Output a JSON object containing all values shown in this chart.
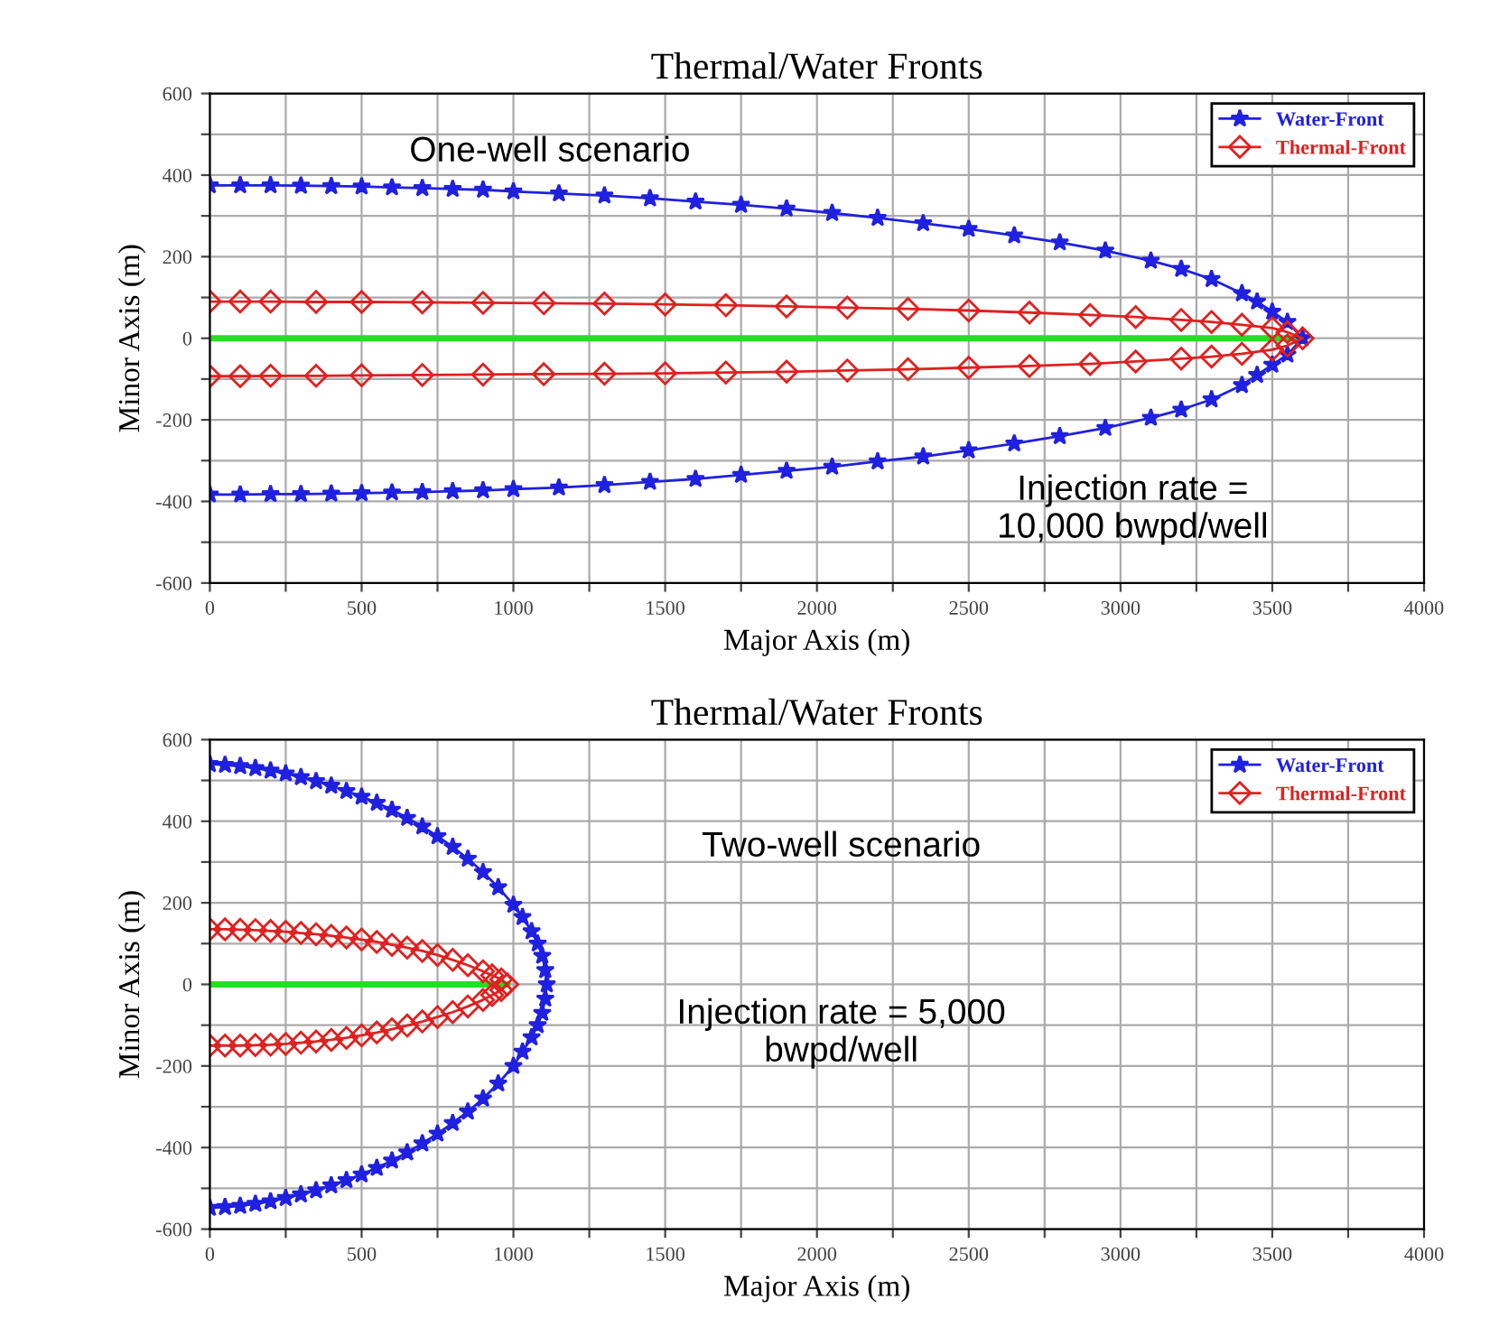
{
  "chart_data": [
    {
      "type": "line",
      "title": "Thermal/Water Fronts",
      "xlabel": "Major Axis (m)",
      "ylabel": "Minor Axis (m)",
      "xlim": [
        0,
        4000
      ],
      "ylim": [
        -600,
        600
      ],
      "xticks": [
        0,
        {
          "value": 250,
          "label": null
        },
        500,
        {
          "value": 750,
          "label": null
        },
        1000,
        {
          "value": 1250,
          "label": null
        },
        1500,
        {
          "value": 1750,
          "label": null
        },
        2000,
        {
          "value": 2250,
          "label": null
        },
        2500,
        {
          "value": 2750,
          "label": null
        },
        3000,
        {
          "value": 3250,
          "label": null
        },
        3500,
        {
          "value": 3750,
          "label": null
        },
        4000
      ],
      "yticks": [
        -600,
        {
          "value": -500,
          "label": null
        },
        -400,
        {
          "value": -300,
          "label": null
        },
        -200,
        {
          "value": -100,
          "label": null
        },
        0,
        {
          "value": 100,
          "label": null
        },
        200,
        {
          "value": 300,
          "label": null
        },
        400,
        {
          "value": 500,
          "label": null
        },
        600
      ],
      "grid": true,
      "legend": "top right",
      "annotations": [
        "One-well scenario",
        "Injection rate =\n10,000 bwpd/well"
      ],
      "series": [
        {
          "name": "Water-Front",
          "color": "#2020e0",
          "marker": "star",
          "x": [
            0,
            100,
            200,
            300,
            400,
            500,
            600,
            700,
            800,
            900,
            1000,
            1150,
            1300,
            1450,
            1600,
            1750,
            1900,
            2050,
            2200,
            2350,
            2500,
            2650,
            2800,
            2950,
            3100,
            3200,
            3300,
            3400,
            3450,
            3500,
            3550,
            3600,
            3550,
            3500,
            3450,
            3400,
            3300,
            3200,
            3100,
            2950,
            2800,
            2650,
            2500,
            2350,
            2200,
            2050,
            1900,
            1750,
            1600,
            1450,
            1300,
            1150,
            1000,
            900,
            800,
            700,
            600,
            500,
            400,
            300,
            200,
            100,
            0
          ],
          "values": [
            375,
            375,
            375,
            374,
            373,
            372,
            370,
            368,
            366,
            364,
            360,
            355,
            350,
            343,
            335,
            327,
            318,
            307,
            295,
            282,
            268,
            252,
            235,
            215,
            190,
            170,
            145,
            110,
            90,
            65,
            40,
            0,
            -40,
            -65,
            -90,
            -115,
            -150,
            -175,
            -195,
            -220,
            -240,
            -258,
            -275,
            -290,
            -302,
            -315,
            -325,
            -335,
            -345,
            -352,
            -360,
            -366,
            -370,
            -373,
            -375,
            -377,
            -378,
            -380,
            -381,
            -382,
            -382,
            -383,
            -383
          ]
        },
        {
          "name": "Thermal-Front",
          "color": "#e02020",
          "marker": "diamond",
          "x": [
            0,
            100,
            200,
            350,
            500,
            700,
            900,
            1100,
            1300,
            1500,
            1700,
            1900,
            2100,
            2300,
            2500,
            2700,
            2900,
            3050,
            3200,
            3300,
            3400,
            3500,
            3550,
            3600,
            3550,
            3500,
            3400,
            3300,
            3200,
            3050,
            2900,
            2700,
            2500,
            2300,
            2100,
            1900,
            1700,
            1500,
            1300,
            1100,
            900,
            700,
            500,
            350,
            200,
            100,
            0
          ],
          "values": [
            90,
            90,
            90,
            89,
            89,
            88,
            87,
            86,
            85,
            83,
            81,
            78,
            75,
            72,
            68,
            63,
            57,
            52,
            45,
            40,
            33,
            25,
            15,
            0,
            -18,
            -28,
            -38,
            -45,
            -50,
            -57,
            -63,
            -68,
            -72,
            -76,
            -79,
            -82,
            -84,
            -86,
            -87,
            -88,
            -89,
            -90,
            -91,
            -92,
            -92,
            -93,
            -93
          ]
        },
        {
          "color": "#22e022",
          "marker": "none",
          "x": [
            0,
            3600
          ],
          "values": [
            0,
            0
          ]
        }
      ]
    },
    {
      "type": "line",
      "title": "Thermal/Water Fronts",
      "xlabel": "Major Axis (m)",
      "ylabel": "Minor Axis (m)",
      "xlim": [
        0,
        4000
      ],
      "ylim": [
        -600,
        600
      ],
      "xticks": [
        0,
        {
          "value": 250,
          "label": null
        },
        500,
        {
          "value": 750,
          "label": null
        },
        1000,
        {
          "value": 1250,
          "label": null
        },
        1500,
        {
          "value": 1750,
          "label": null
        },
        2000,
        {
          "value": 2250,
          "label": null
        },
        2500,
        {
          "value": 2750,
          "label": null
        },
        3000,
        {
          "value": 3250,
          "label": null
        },
        3500,
        {
          "value": 3750,
          "label": null
        },
        4000
      ],
      "yticks": [
        -600,
        {
          "value": -500,
          "label": null
        },
        -400,
        {
          "value": -300,
          "label": null
        },
        -200,
        {
          "value": -100,
          "label": null
        },
        0,
        {
          "value": 100,
          "label": null
        },
        200,
        {
          "value": 300,
          "label": null
        },
        400,
        {
          "value": 500,
          "label": null
        },
        600
      ],
      "grid": true,
      "legend": "top right",
      "annotations": [
        "Two-well scenario",
        "Injection rate = 5,000\nbwpd/well"
      ],
      "series": [
        {
          "name": "Water-Front",
          "color": "#2020e0",
          "marker": "star",
          "x": [
            0,
            50,
            100,
            150,
            200,
            250,
            300,
            350,
            400,
            450,
            500,
            550,
            600,
            650,
            700,
            750,
            800,
            850,
            900,
            950,
            1000,
            1030,
            1060,
            1080,
            1095,
            1105,
            1110,
            1105,
            1095,
            1080,
            1060,
            1030,
            1000,
            950,
            900,
            850,
            800,
            750,
            700,
            650,
            600,
            550,
            500,
            450,
            400,
            350,
            300,
            250,
            200,
            150,
            100,
            50,
            0
          ],
          "values": [
            540,
            538,
            535,
            530,
            524,
            517,
            508,
            498,
            487,
            474,
            460,
            445,
            428,
            408,
            387,
            363,
            337,
            308,
            275,
            238,
            195,
            165,
            130,
            100,
            70,
            35,
            0,
            -35,
            -70,
            -100,
            -130,
            -165,
            -200,
            -243,
            -280,
            -312,
            -340,
            -366,
            -390,
            -412,
            -432,
            -450,
            -466,
            -480,
            -493,
            -505,
            -515,
            -524,
            -532,
            -538,
            -543,
            -546,
            -548
          ]
        },
        {
          "name": "Thermal-Front",
          "color": "#e02020",
          "marker": "diamond",
          "x": [
            0,
            50,
            100,
            150,
            200,
            250,
            300,
            350,
            400,
            450,
            500,
            550,
            600,
            650,
            700,
            750,
            800,
            850,
            900,
            930,
            960,
            980,
            960,
            930,
            900,
            850,
            800,
            750,
            700,
            650,
            600,
            550,
            500,
            450,
            400,
            350,
            300,
            250,
            200,
            150,
            100,
            50,
            0
          ],
          "values": [
            135,
            135,
            134,
            133,
            131,
            129,
            126,
            123,
            119,
            115,
            110,
            104,
            97,
            90,
            82,
            72,
            60,
            47,
            32,
            22,
            12,
            0,
            -14,
            -26,
            -38,
            -54,
            -68,
            -80,
            -91,
            -101,
            -110,
            -118,
            -125,
            -131,
            -136,
            -140,
            -143,
            -146,
            -148,
            -149,
            -150,
            -150,
            -150
          ]
        },
        {
          "color": "#22e022",
          "marker": "none",
          "x": [
            0,
            980
          ],
          "values": [
            0,
            0
          ]
        }
      ]
    }
  ]
}
